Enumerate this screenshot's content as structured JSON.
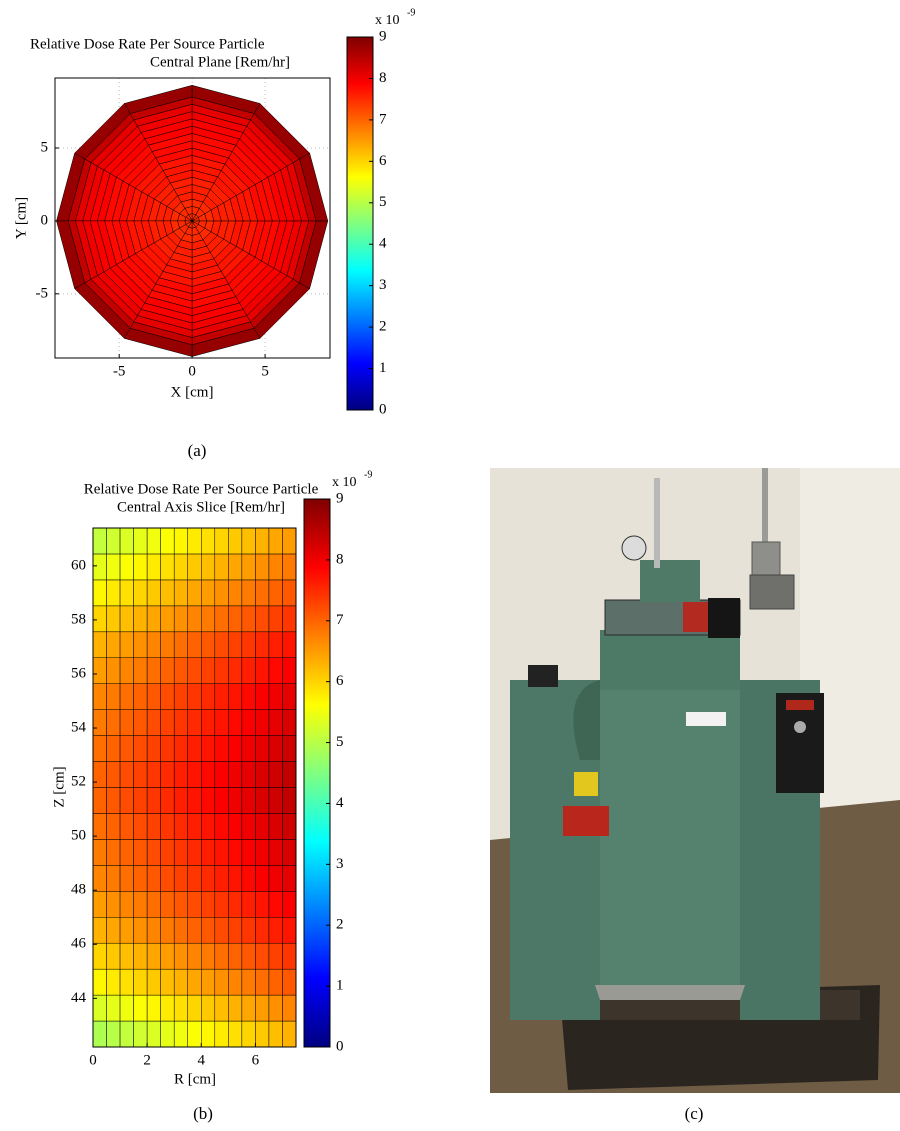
{
  "chart_data": [
    {
      "type": "polar_heatmap",
      "title": [
        "Relative Dose Rate Per Source Particle",
        "Central Plane [Rem/hr]"
      ],
      "xlabel": "X [cm]",
      "ylabel": "Y [cm]",
      "xlim": [
        -9.4,
        9.45
      ],
      "ylim": [
        -9.4,
        9.8
      ],
      "xticks": [
        -5,
        0,
        5
      ],
      "yticks": [
        -5,
        0,
        5
      ],
      "grid": true,
      "sectors": 12,
      "r_edges": [
        0,
        0.5,
        1,
        1.5,
        2,
        2.5,
        3,
        3.5,
        4,
        4.5,
        5,
        5.5,
        6,
        6.5,
        7,
        7.5,
        8,
        8.5,
        9.3
      ],
      "values": [
        7.5,
        7.5,
        7.5,
        7.6,
        7.6,
        7.6,
        7.7,
        7.7,
        7.7,
        7.8,
        7.8,
        7.8,
        7.9,
        7.9,
        8.0,
        8.1,
        8.4,
        8.8
      ],
      "colormap": "jet",
      "clim": [
        0,
        9
      ],
      "cticks": [
        0,
        1,
        2,
        3,
        4,
        5,
        6,
        7,
        8,
        9
      ],
      "colorbar_label": "x 10",
      "colorbar_exponent": "-9"
    },
    {
      "type": "heatmap",
      "title": [
        "Relative Dose Rate Per Source Particle",
        "Central Axis Slice [Rem/hr]"
      ],
      "xlabel": "R [cm]",
      "ylabel": "Z [cm]",
      "xlim": [
        0,
        7.5
      ],
      "ylim": [
        42.2,
        61.4
      ],
      "xticks": [
        0,
        2,
        4,
        6
      ],
      "yticks": [
        44,
        46,
        48,
        50,
        52,
        54,
        56,
        58,
        60
      ],
      "x_edges": [
        0,
        0.5,
        1,
        1.5,
        2,
        2.5,
        3,
        3.5,
        4,
        4.5,
        5,
        5.5,
        6,
        6.5,
        7,
        7.5
      ],
      "y_edges": [
        42.2,
        43.16,
        44.12,
        45.08,
        46.04,
        47.0,
        47.96,
        48.92,
        49.88,
        50.84,
        51.8,
        52.76,
        53.72,
        54.68,
        55.64,
        56.6,
        57.56,
        58.52,
        59.48,
        60.44,
        61.4
      ],
      "values": [
        [
          4.9,
          5.0,
          5.1,
          5.2,
          5.3,
          5.4,
          5.5,
          5.6,
          5.7,
          5.8,
          5.9,
          6.0,
          6.1,
          6.2,
          6.3
        ],
        [
          5.3,
          5.4,
          5.5,
          5.6,
          5.7,
          5.8,
          5.9,
          6.0,
          6.1,
          6.2,
          6.3,
          6.4,
          6.5,
          6.6,
          6.7
        ],
        [
          5.7,
          5.8,
          5.9,
          6.0,
          6.1,
          6.2,
          6.3,
          6.4,
          6.5,
          6.6,
          6.7,
          6.8,
          6.9,
          7.0,
          7.1
        ],
        [
          6.0,
          6.1,
          6.2,
          6.3,
          6.4,
          6.5,
          6.6,
          6.7,
          6.8,
          6.9,
          7.0,
          7.1,
          7.2,
          7.3,
          7.4
        ],
        [
          6.3,
          6.4,
          6.5,
          6.6,
          6.7,
          6.8,
          6.9,
          7.0,
          7.1,
          7.2,
          7.3,
          7.4,
          7.5,
          7.6,
          7.7
        ],
        [
          6.5,
          6.6,
          6.7,
          6.8,
          6.9,
          7.0,
          7.1,
          7.2,
          7.3,
          7.4,
          7.5,
          7.6,
          7.7,
          7.8,
          7.9
        ],
        [
          6.7,
          6.8,
          6.9,
          7.0,
          7.1,
          7.2,
          7.3,
          7.4,
          7.5,
          7.6,
          7.7,
          7.8,
          7.9,
          8.0,
          8.1
        ],
        [
          6.8,
          6.9,
          7.0,
          7.1,
          7.2,
          7.3,
          7.4,
          7.5,
          7.6,
          7.7,
          7.8,
          7.9,
          8.0,
          8.1,
          8.2
        ],
        [
          6.9,
          7.0,
          7.1,
          7.2,
          7.3,
          7.4,
          7.5,
          7.6,
          7.7,
          7.8,
          7.9,
          8.0,
          8.1,
          8.2,
          8.3
        ],
        [
          7.0,
          7.1,
          7.2,
          7.3,
          7.4,
          7.5,
          7.6,
          7.7,
          7.8,
          7.9,
          8.0,
          8.1,
          8.2,
          8.3,
          8.4
        ],
        [
          7.0,
          7.1,
          7.2,
          7.3,
          7.4,
          7.5,
          7.6,
          7.7,
          7.8,
          7.9,
          8.0,
          8.1,
          8.2,
          8.3,
          8.4
        ],
        [
          6.9,
          7.0,
          7.1,
          7.2,
          7.3,
          7.4,
          7.5,
          7.6,
          7.7,
          7.8,
          7.9,
          8.0,
          8.1,
          8.2,
          8.3
        ],
        [
          6.8,
          6.9,
          7.0,
          7.1,
          7.2,
          7.3,
          7.4,
          7.5,
          7.6,
          7.7,
          7.8,
          7.9,
          8.0,
          8.1,
          8.2
        ],
        [
          6.7,
          6.8,
          6.9,
          7.0,
          7.1,
          7.2,
          7.3,
          7.4,
          7.5,
          7.6,
          7.7,
          7.8,
          7.9,
          8.0,
          8.1
        ],
        [
          6.5,
          6.6,
          6.7,
          6.8,
          6.9,
          7.0,
          7.1,
          7.2,
          7.3,
          7.4,
          7.5,
          7.6,
          7.7,
          7.8,
          7.9
        ],
        [
          6.3,
          6.4,
          6.5,
          6.6,
          6.7,
          6.8,
          6.9,
          7.0,
          7.1,
          7.2,
          7.3,
          7.4,
          7.5,
          7.6,
          7.7
        ],
        [
          6.0,
          6.1,
          6.2,
          6.3,
          6.4,
          6.5,
          6.6,
          6.7,
          6.8,
          6.9,
          7.0,
          7.1,
          7.2,
          7.3,
          7.4
        ],
        [
          5.7,
          5.8,
          5.9,
          6.0,
          6.1,
          6.2,
          6.3,
          6.4,
          6.5,
          6.6,
          6.7,
          6.8,
          6.9,
          7.0,
          7.1
        ],
        [
          5.4,
          5.5,
          5.6,
          5.7,
          5.8,
          5.9,
          6.0,
          6.1,
          6.2,
          6.3,
          6.4,
          6.5,
          6.6,
          6.7,
          6.8
        ],
        [
          5.1,
          5.2,
          5.3,
          5.4,
          5.5,
          5.6,
          5.7,
          5.8,
          5.9,
          6.0,
          6.1,
          6.2,
          6.3,
          6.4,
          6.5
        ]
      ],
      "colormap": "jet",
      "clim": [
        0,
        9
      ],
      "cticks": [
        0,
        1,
        2,
        3,
        4,
        5,
        6,
        7,
        8,
        9
      ],
      "colorbar_label": "x 10",
      "colorbar_exponent": "-9"
    }
  ],
  "figure": {
    "captions": [
      "(a)",
      "(b)",
      "(c)"
    ]
  }
}
